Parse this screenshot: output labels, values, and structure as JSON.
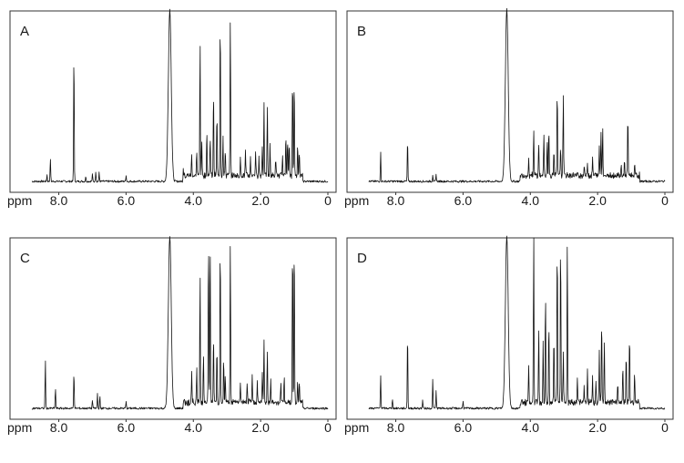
{
  "chart_data": [
    {
      "type": "line",
      "panel_label": "A",
      "xlabel": "ppm",
      "x_reversed": true,
      "xlim": [
        8.8,
        0
      ],
      "x_ticks": [
        8.0,
        6.0,
        4.0,
        2.0,
        0
      ],
      "x_tick_labels": [
        "8.0",
        "6.0",
        "4.0",
        "2.0",
        "0"
      ],
      "ylim": [
        0,
        100
      ],
      "series": [
        {
          "x": [
            8.35,
            8.25,
            7.55,
            7.2,
            7.0,
            6.9,
            6.8,
            6.0,
            4.7,
            4.3,
            4.05,
            3.9,
            3.8,
            3.75,
            3.6,
            3.5,
            3.4,
            3.3,
            3.2,
            3.12,
            3.05,
            2.9,
            2.6,
            2.45,
            2.3,
            2.15,
            2.05,
            1.95,
            1.9,
            1.8,
            1.72,
            1.55,
            1.35,
            1.25,
            1.2,
            1.15,
            1.05,
            1.0,
            0.9,
            0.85
          ],
          "y": [
            4,
            14,
            81,
            3,
            4,
            6,
            5,
            4,
            100,
            5,
            12,
            14,
            82,
            22,
            28,
            25,
            52,
            38,
            100,
            24,
            16,
            100,
            10,
            14,
            10,
            14,
            10,
            18,
            42,
            40,
            18,
            10,
            12,
            26,
            22,
            20,
            60,
            58,
            18,
            16
          ]
        }
      ]
    },
    {
      "type": "line",
      "panel_label": "B",
      "xlabel": "ppm",
      "x_reversed": true,
      "xlim": [
        8.8,
        0
      ],
      "x_ticks": [
        8.0,
        6.0,
        4.0,
        2.0,
        0
      ],
      "x_tick_labels": [
        "8.0",
        "6.0",
        "4.0",
        "2.0",
        "0"
      ],
      "ylim": [
        0,
        100
      ],
      "series": [
        {
          "x": [
            8.45,
            7.65,
            6.9,
            6.8,
            4.7,
            4.05,
            3.9,
            3.75,
            3.6,
            3.5,
            3.45,
            3.3,
            3.2,
            3.1,
            3.02,
            2.4,
            2.3,
            2.15,
            1.95,
            1.9,
            1.85,
            1.3,
            1.2,
            1.1,
            0.9
          ],
          "y": [
            17,
            26,
            4,
            4,
            100,
            10,
            26,
            20,
            25,
            22,
            28,
            16,
            52,
            18,
            50,
            6,
            8,
            10,
            18,
            26,
            30,
            6,
            8,
            37,
            6
          ]
        }
      ]
    },
    {
      "type": "line",
      "panel_label": "C",
      "xlabel": "ppm",
      "x_reversed": true,
      "xlim": [
        8.8,
        0
      ],
      "x_ticks": [
        8.0,
        6.0,
        4.0,
        2.0,
        0
      ],
      "x_tick_labels": [
        "8.0",
        "6.0",
        "4.0",
        "2.0",
        "0"
      ],
      "ylim": [
        0,
        100
      ],
      "series": [
        {
          "x": [
            8.4,
            8.1,
            7.55,
            7.0,
            6.85,
            6.78,
            6.0,
            4.7,
            4.05,
            3.9,
            3.8,
            3.7,
            3.55,
            3.5,
            3.4,
            3.3,
            3.2,
            3.1,
            3.05,
            2.9,
            2.6,
            2.4,
            2.25,
            2.1,
            1.95,
            1.9,
            1.8,
            1.7,
            1.4,
            1.3,
            1.05,
            1.0,
            0.9,
            0.85
          ],
          "y": [
            29,
            12,
            23,
            5,
            9,
            7,
            4,
            100,
            17,
            20,
            78,
            30,
            100,
            100,
            42,
            33,
            100,
            28,
            18,
            100,
            12,
            10,
            16,
            12,
            18,
            36,
            30,
            14,
            12,
            16,
            100,
            100,
            14,
            12
          ]
        }
      ]
    },
    {
      "type": "line",
      "panel_label": "D",
      "xlabel": "ppm",
      "x_reversed": true,
      "xlim": [
        8.8,
        0
      ],
      "x_ticks": [
        8.0,
        6.0,
        4.0,
        2.0,
        0
      ],
      "x_tick_labels": [
        "8.0",
        "6.0",
        "4.0",
        "2.0",
        "0"
      ],
      "ylim": [
        0,
        100
      ],
      "series": [
        {
          "x": [
            8.45,
            8.1,
            7.65,
            7.2,
            6.9,
            6.8,
            6.0,
            4.7,
            4.05,
            3.9,
            3.75,
            3.62,
            3.55,
            3.45,
            3.3,
            3.2,
            3.1,
            3.02,
            2.9,
            2.6,
            2.4,
            2.3,
            2.15,
            2.05,
            1.95,
            1.88,
            1.8,
            1.4,
            1.25,
            1.15,
            1.05,
            0.9
          ],
          "y": [
            20,
            6,
            47,
            5,
            17,
            10,
            5,
            100,
            22,
            100,
            45,
            35,
            67,
            48,
            42,
            100,
            100,
            30,
            100,
            14,
            10,
            20,
            16,
            14,
            32,
            53,
            35,
            12,
            24,
            30,
            41,
            18
          ]
        }
      ]
    }
  ]
}
